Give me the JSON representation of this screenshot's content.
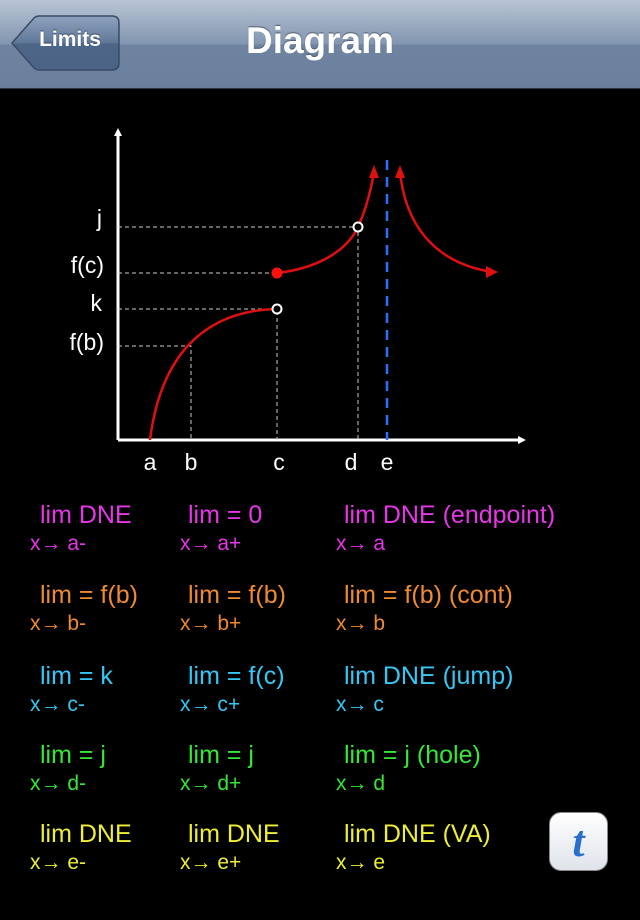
{
  "nav": {
    "back": "Limits",
    "title": "Diagram"
  },
  "diagram": {
    "y_labels": [
      "j",
      "f(c)",
      "k",
      "f(b)"
    ],
    "x_labels": [
      "a",
      "b",
      "c",
      "d",
      "e"
    ]
  },
  "limits": [
    [
      {
        "limit": "lim DNE",
        "approach": "x→ a-"
      },
      {
        "limit": "lim = 0",
        "approach": "x→ a+"
      },
      {
        "limit": "lim DNE (endpoint)",
        "approach": "x→ a"
      }
    ],
    [
      {
        "limit": "lim = f(b)",
        "approach": "x→ b-"
      },
      {
        "limit": "lim = f(b)",
        "approach": "x→ b+"
      },
      {
        "limit": "lim = f(b) (cont)",
        "approach": "x→ b"
      }
    ],
    [
      {
        "limit": "lim = k",
        "approach": "x→ c-"
      },
      {
        "limit": "lim = f(c)",
        "approach": "x→ c+"
      },
      {
        "limit": "lim DNE (jump)",
        "approach": "x→ c"
      }
    ],
    [
      {
        "limit": "lim = j",
        "approach": "x→ d-"
      },
      {
        "limit": "lim = j",
        "approach": "x→ d+"
      },
      {
        "limit": "lim = j (hole)",
        "approach": "x→ d"
      }
    ],
    [
      {
        "limit": "lim DNE",
        "approach": "x→ e-"
      },
      {
        "limit": "lim DNE",
        "approach": "x→ e+"
      },
      {
        "limit": "lim DNE (VA)",
        "approach": "x→ e"
      }
    ]
  ],
  "button": "t"
}
